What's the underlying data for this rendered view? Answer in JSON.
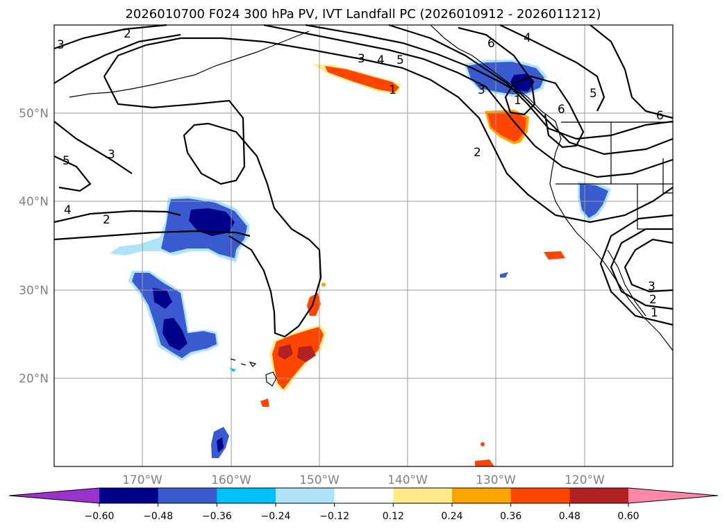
{
  "title": "2026010700 F024 300 hPa PV, IVT Landfall PC (2026010912 - 2026011212)",
  "map": {
    "lon_range": [
      -180,
      -110
    ],
    "lat_range": [
      10,
      60
    ],
    "lat_labels": [
      {
        "lat": 50,
        "text": "50°N"
      },
      {
        "lat": 40,
        "text": "40°N"
      },
      {
        "lat": 30,
        "text": "30°N"
      },
      {
        "lat": 20,
        "text": "20°N"
      }
    ],
    "lon_labels": [
      {
        "lon": -170,
        "text": "170°W"
      },
      {
        "lon": -160,
        "text": "160°W"
      },
      {
        "lon": -150,
        "text": "150°W"
      },
      {
        "lon": -140,
        "text": "140°W"
      },
      {
        "lon": -130,
        "text": "130°W"
      },
      {
        "lon": -120,
        "text": "120°W"
      }
    ],
    "contour_labels": [
      "3",
      "2",
      "5",
      "4",
      "2",
      "3",
      "3",
      "4",
      "5",
      "6",
      "4",
      "1",
      "5",
      "6",
      "2",
      "6",
      "3",
      "2",
      "1",
      "3",
      "1"
    ]
  },
  "colorbar": {
    "ticks": [
      "−0.60",
      "−0.48",
      "−0.36",
      "−0.24",
      "−0.12",
      "0.12",
      "0.24",
      "0.36",
      "0.48",
      "0.60"
    ],
    "colors": [
      "#9933cc",
      "#00008b",
      "#3a5bd0",
      "#00bfff",
      "#aee4fa",
      "#ffffff",
      "#ffeb8a",
      "#ffa500",
      "#ff4500",
      "#b22222",
      "#ff88aa"
    ]
  }
}
